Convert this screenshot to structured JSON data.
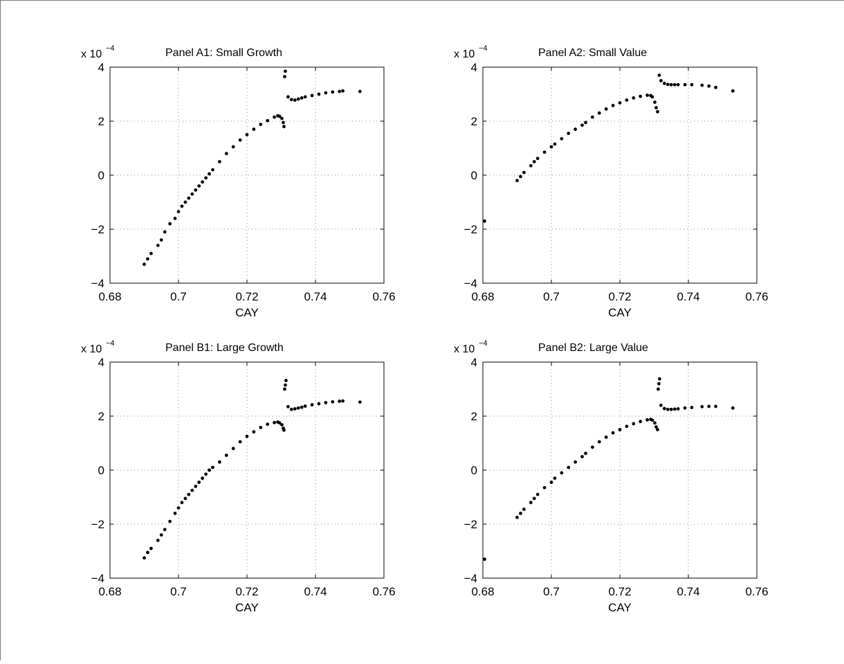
{
  "chart_data": [
    {
      "type": "scatter",
      "title": "Panel A1: Small Growth",
      "xlabel": "CAY",
      "ylabel": "",
      "y_multiplier_base": "x 10",
      "y_multiplier_exponent": "−4",
      "xlim": [
        0.68,
        0.76
      ],
      "ylim": [
        -4,
        4
      ],
      "x_ticks": [
        0.68,
        0.7,
        0.72,
        0.74,
        0.76
      ],
      "x_tick_labels": [
        "0.68",
        "0.7",
        "0.72",
        "0.74",
        "0.76"
      ],
      "y_ticks": [
        -4,
        -2,
        0,
        2,
        4
      ],
      "y_tick_labels": [
        "−4",
        "−2",
        "0",
        "2",
        "4"
      ],
      "grid": true,
      "marker_color": "#000000",
      "series": [
        {
          "x": [
            0.69,
            0.691,
            0.692,
            0.694,
            0.695,
            0.696,
            0.6975,
            0.699,
            0.7,
            0.701,
            0.702,
            0.703,
            0.704,
            0.705,
            0.706,
            0.707,
            0.708,
            0.709,
            0.71,
            0.712,
            0.714,
            0.716,
            0.718,
            0.72,
            0.722,
            0.724,
            0.726,
            0.728,
            0.729,
            0.7295,
            0.7302,
            0.7306,
            0.7308,
            0.731,
            0.7312,
            0.732,
            0.733,
            0.734,
            0.735,
            0.736,
            0.737,
            0.739,
            0.741,
            0.743,
            0.745,
            0.747,
            0.748,
            0.753
          ],
          "y": [
            -3.3,
            -3.1,
            -2.9,
            -2.6,
            -2.4,
            -2.1,
            -1.8,
            -1.6,
            -1.35,
            -1.15,
            -1.0,
            -0.85,
            -0.7,
            -0.55,
            -0.4,
            -0.25,
            -0.1,
            0.05,
            0.2,
            0.5,
            0.8,
            1.05,
            1.3,
            1.5,
            1.7,
            1.88,
            2.02,
            2.15,
            2.2,
            2.18,
            2.1,
            1.95,
            1.8,
            3.65,
            3.85,
            2.9,
            2.8,
            2.78,
            2.82,
            2.86,
            2.9,
            2.95,
            3.0,
            3.05,
            3.08,
            3.1,
            3.12,
            3.1
          ]
        }
      ]
    },
    {
      "type": "scatter",
      "title": "Panel A2: Small Value",
      "xlabel": "CAY",
      "ylabel": "",
      "y_multiplier_base": "x 10",
      "y_multiplier_exponent": "−4",
      "xlim": [
        0.68,
        0.76
      ],
      "ylim": [
        -4,
        4
      ],
      "x_ticks": [
        0.68,
        0.7,
        0.72,
        0.74,
        0.76
      ],
      "x_tick_labels": [
        "0.68",
        "0.7",
        "0.72",
        "0.74",
        "0.76"
      ],
      "y_ticks": [
        -4,
        -2,
        0,
        2,
        4
      ],
      "y_tick_labels": [
        "−4",
        "−2",
        "0",
        "2",
        "4"
      ],
      "grid": true,
      "marker_color": "#000000",
      "series": [
        {
          "x": [
            0.6805,
            0.69,
            0.691,
            0.692,
            0.694,
            0.695,
            0.696,
            0.698,
            0.7,
            0.701,
            0.703,
            0.705,
            0.707,
            0.709,
            0.71,
            0.712,
            0.714,
            0.716,
            0.718,
            0.72,
            0.722,
            0.724,
            0.726,
            0.728,
            0.729,
            0.7295,
            0.7302,
            0.7306,
            0.731,
            0.7315,
            0.732,
            0.733,
            0.734,
            0.735,
            0.736,
            0.737,
            0.739,
            0.741,
            0.744,
            0.746,
            0.748,
            0.753
          ],
          "y": [
            -1.7,
            -0.2,
            -0.05,
            0.1,
            0.35,
            0.5,
            0.62,
            0.85,
            1.05,
            1.15,
            1.35,
            1.55,
            1.7,
            1.85,
            1.95,
            2.15,
            2.3,
            2.45,
            2.58,
            2.68,
            2.78,
            2.86,
            2.92,
            2.96,
            2.95,
            2.9,
            2.7,
            2.5,
            2.35,
            3.7,
            3.5,
            3.4,
            3.36,
            3.35,
            3.35,
            3.35,
            3.35,
            3.35,
            3.33,
            3.3,
            3.25,
            3.12
          ]
        }
      ]
    },
    {
      "type": "scatter",
      "title": "Panel B1: Large Growth",
      "xlabel": "CAY",
      "ylabel": "",
      "y_multiplier_base": "x 10",
      "y_multiplier_exponent": "−4",
      "xlim": [
        0.68,
        0.76
      ],
      "ylim": [
        -4,
        4
      ],
      "x_ticks": [
        0.68,
        0.7,
        0.72,
        0.74,
        0.76
      ],
      "x_tick_labels": [
        "0.68",
        "0.7",
        "0.72",
        "0.74",
        "0.76"
      ],
      "y_ticks": [
        -4,
        -2,
        0,
        2,
        4
      ],
      "y_tick_labels": [
        "−4",
        "−2",
        "0",
        "2",
        "4"
      ],
      "grid": true,
      "marker_color": "#000000",
      "series": [
        {
          "x": [
            0.69,
            0.691,
            0.692,
            0.694,
            0.695,
            0.696,
            0.6975,
            0.699,
            0.7,
            0.701,
            0.702,
            0.703,
            0.704,
            0.705,
            0.706,
            0.707,
            0.708,
            0.709,
            0.71,
            0.712,
            0.714,
            0.716,
            0.718,
            0.72,
            0.722,
            0.724,
            0.726,
            0.728,
            0.729,
            0.7295,
            0.7302,
            0.7306,
            0.7308,
            0.731,
            0.7312,
            0.7314,
            0.732,
            0.733,
            0.734,
            0.735,
            0.736,
            0.737,
            0.739,
            0.741,
            0.743,
            0.745,
            0.747,
            0.748,
            0.753
          ],
          "y": [
            -3.25,
            -3.05,
            -2.9,
            -2.6,
            -2.4,
            -2.2,
            -1.9,
            -1.6,
            -1.4,
            -1.2,
            -1.05,
            -0.9,
            -0.75,
            -0.6,
            -0.45,
            -0.3,
            -0.15,
            0.0,
            0.1,
            0.3,
            0.55,
            0.8,
            1.05,
            1.25,
            1.42,
            1.58,
            1.7,
            1.76,
            1.78,
            1.75,
            1.68,
            1.55,
            1.48,
            3.0,
            3.15,
            3.32,
            2.35,
            2.25,
            2.27,
            2.3,
            2.33,
            2.37,
            2.42,
            2.46,
            2.5,
            2.53,
            2.55,
            2.56,
            2.52
          ]
        }
      ]
    },
    {
      "type": "scatter",
      "title": "Panel B2: Large Value",
      "xlabel": "CAY",
      "ylabel": "",
      "y_multiplier_base": "x 10",
      "y_multiplier_exponent": "−4",
      "xlim": [
        0.68,
        0.76
      ],
      "ylim": [
        -4,
        4
      ],
      "x_ticks": [
        0.68,
        0.7,
        0.72,
        0.74,
        0.76
      ],
      "x_tick_labels": [
        "0.68",
        "0.7",
        "0.72",
        "0.74",
        "0.76"
      ],
      "y_ticks": [
        -4,
        -2,
        0,
        2,
        4
      ],
      "y_tick_labels": [
        "−4",
        "−2",
        "0",
        "2",
        "4"
      ],
      "grid": true,
      "marker_color": "#000000",
      "series": [
        {
          "x": [
            0.6805,
            0.69,
            0.691,
            0.692,
            0.694,
            0.695,
            0.696,
            0.698,
            0.7,
            0.701,
            0.703,
            0.705,
            0.707,
            0.709,
            0.71,
            0.712,
            0.714,
            0.716,
            0.718,
            0.72,
            0.722,
            0.724,
            0.726,
            0.728,
            0.729,
            0.7295,
            0.7302,
            0.7306,
            0.731,
            0.7312,
            0.7314,
            0.7316,
            0.732,
            0.733,
            0.734,
            0.735,
            0.736,
            0.737,
            0.739,
            0.741,
            0.744,
            0.746,
            0.748,
            0.753
          ],
          "y": [
            -3.3,
            -1.75,
            -1.6,
            -1.45,
            -1.2,
            -1.05,
            -0.9,
            -0.65,
            -0.45,
            -0.3,
            -0.1,
            0.1,
            0.3,
            0.5,
            0.62,
            0.85,
            1.05,
            1.22,
            1.38,
            1.5,
            1.62,
            1.72,
            1.8,
            1.86,
            1.88,
            1.85,
            1.75,
            1.6,
            1.5,
            3.0,
            3.2,
            3.38,
            2.4,
            2.28,
            2.25,
            2.25,
            2.26,
            2.27,
            2.3,
            2.32,
            2.35,
            2.36,
            2.36,
            2.3
          ]
        }
      ]
    }
  ]
}
